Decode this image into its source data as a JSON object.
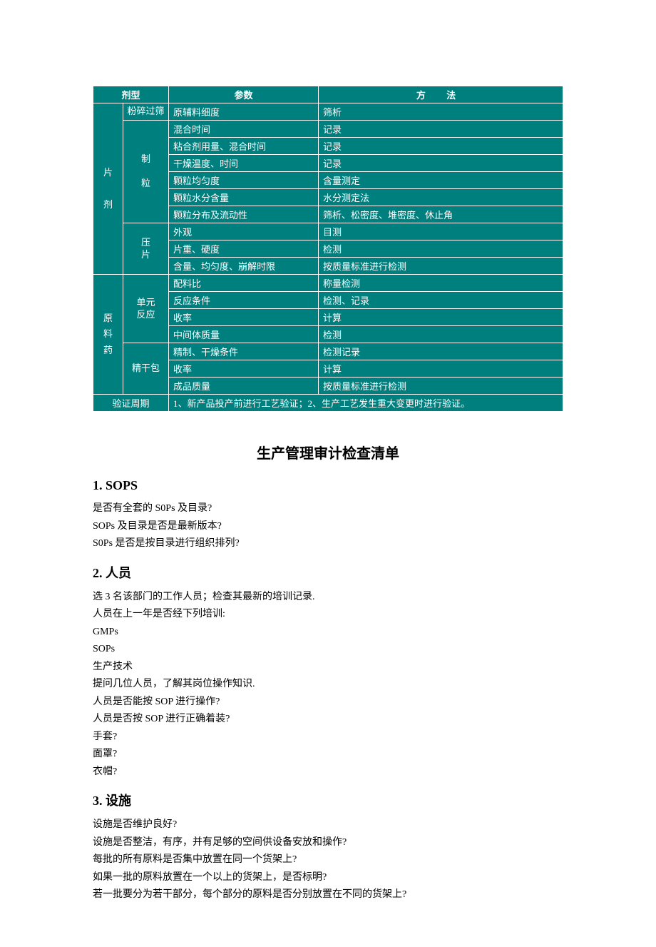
{
  "table": {
    "bg": "#007f7f",
    "head": {
      "c1": "剂型",
      "c2": "参数",
      "c3": "方  法"
    },
    "rows": [
      {
        "g1": "片\n\n剂",
        "g2": "粉碎过筛",
        "p": "原辅料细度",
        "m": "筛析"
      },
      {
        "g2": "制\n\n粒",
        "p": "混合时间",
        "m": "记录"
      },
      {
        "p": "粘合剂用量、混合时间",
        "m": "记录"
      },
      {
        "p": "干燥温度、时间",
        "m": "记录"
      },
      {
        "p": "颗粒均匀度",
        "m": "含量测定"
      },
      {
        "p": "颗粒水分含量",
        "m": "水分测定法"
      },
      {
        "p": "颗粒分布及流动性",
        "m": "筛析、松密度、堆密度、休止角"
      },
      {
        "g2": "压\n片",
        "p": "外观",
        "m": "目测"
      },
      {
        "p": "片重、硬度",
        "m": "检测"
      },
      {
        "p": "含量、均匀度、崩解时限",
        "m": "按质量标准进行检测"
      },
      {
        "g1": "原\n料\n药",
        "g2": "单元\n反应",
        "p": "配料比",
        "m": "称量检测"
      },
      {
        "p": "反应条件",
        "m": "检测、记录"
      },
      {
        "p": "收率",
        "m": "计算"
      },
      {
        "p": "中间体质量",
        "m": "检测"
      },
      {
        "g2": "精干包",
        "p": "精制、干燥条件",
        "m": "检测记录"
      },
      {
        "p": "收率",
        "m": "计算"
      },
      {
        "p": "成品质量",
        "m": "按质量标准进行检测"
      }
    ],
    "validation": {
      "label": "验证周期",
      "text": "1、新产品投产前进行工艺验证；2、生产工艺发生重大变更时进行验证。"
    }
  },
  "title": "生产管理审计检查清单",
  "s1": {
    "h": "1. SOPS",
    "l": [
      "是否有全套的 S0Ps 及目录?",
      "SOPs 及目录是否是最新版本?",
      "S0Ps 是否是按目录进行组织排列?"
    ]
  },
  "s2": {
    "h": "2.  人员",
    "l": [
      "选 3 名该部门的工作人员；检查其最新的培训记录.",
      "人员在上一年是否经下列培训:",
      "GMPs",
      "SOPs",
      "生产技术",
      "提问几位人员，了解其岗位操作知识.",
      "人员是否能按 SOP 进行操作?",
      "人员是否按 SOP 进行正确着装?",
      "手套?",
      "面罩?",
      "衣帽?"
    ]
  },
  "s3": {
    "h": "3.  设施",
    "l": [
      "设施是否维护良好?",
      "设施是否整洁，有序，并有足够的空间供设备安放和操作?",
      "每批的所有原料是否集中放置在同一个货架上?",
      "如果一批的原料放置在一个以上的货架上，是否标明?",
      "若一批要分为若干部分，每个部分的原料是否分别放置在不同的货架上?"
    ]
  }
}
